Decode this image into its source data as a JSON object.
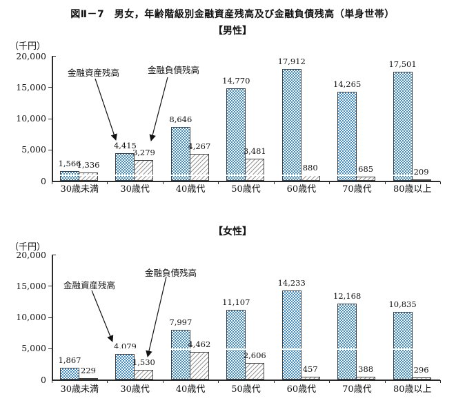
{
  "page_title": "図Ⅱ－7　男女，年齢階級別金融資産残高及び金融負債残高（単身世帯）",
  "colors": {
    "asset_bar_blue": "#3f8ccc",
    "liability_hatch_gray": "#949494",
    "bar_border": "#3f3f3f",
    "axis": "#2b2b2b",
    "text": "#111111"
  },
  "chart_data": [
    {
      "type": "bar",
      "title": "【男性】",
      "unit_label": "（千円）",
      "categories": [
        "30歳未満",
        "30歳代",
        "40歳代",
        "50歳代",
        "60歳代",
        "70歳代",
        "80歳以上"
      ],
      "series": [
        {
          "name": "金融資産残高",
          "values": [
            1566,
            4415,
            8646,
            14770,
            17912,
            14265,
            17501
          ]
        },
        {
          "name": "金融負債残高",
          "values": [
            1336,
            3279,
            4267,
            3481,
            880,
            685,
            209
          ]
        }
      ],
      "ylim": [
        0,
        20000
      ],
      "ytick_step": 5000,
      "ytick_labels": [
        "0",
        "5,000",
        "10,000",
        "15,000",
        "20,000"
      ],
      "legend_position": "arrow-annotations-inside-plot",
      "grid": "white-overlay-line",
      "white_gridline_value": 1000,
      "data_labels": true
    },
    {
      "type": "bar",
      "title": "【女性】",
      "unit_label": "（千円）",
      "categories": [
        "30歳未満",
        "30歳代",
        "40歳代",
        "50歳代",
        "60歳代",
        "70歳代",
        "80歳以上"
      ],
      "series": [
        {
          "name": "金融資産残高",
          "values": [
            1867,
            4079,
            7997,
            11107,
            14233,
            12168,
            10835
          ]
        },
        {
          "name": "金融負債残高",
          "values": [
            229,
            1530,
            4462,
            2606,
            457,
            388,
            296
          ]
        }
      ],
      "ylim": [
        0,
        20000
      ],
      "ytick_step": 5000,
      "ytick_labels": [
        "0",
        "5,000",
        "10,000",
        "15,000",
        "20,000"
      ],
      "legend_position": "arrow-annotations-inside-plot",
      "grid": "white-overlay-line",
      "white_gridline_value": 5000,
      "data_labels": true
    }
  ]
}
